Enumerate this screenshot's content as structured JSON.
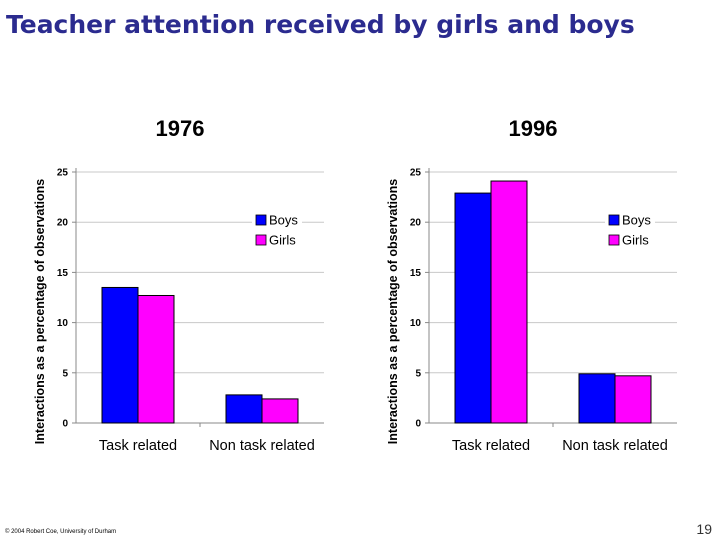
{
  "slide": {
    "title": "Teacher attention received by girls and boys",
    "footer": "© 2004 Robert Coe, University of Durham",
    "page_number": "19"
  },
  "colors": {
    "boys": "#0000ff",
    "girls": "#ff00ff"
  },
  "chart_data": [
    {
      "type": "bar",
      "title": "1976",
      "ylabel": "Interactions as a percentage of observations",
      "xlabel": "",
      "ylim": [
        0,
        25
      ],
      "yticks": [
        0,
        5,
        10,
        15,
        20,
        25
      ],
      "grid": true,
      "legend": "right",
      "categories": [
        "Task related",
        "Non task related"
      ],
      "series": [
        {
          "name": "Boys",
          "values": [
            13.5,
            2.8
          ]
        },
        {
          "name": "Girls",
          "values": [
            12.7,
            2.4
          ]
        }
      ]
    },
    {
      "type": "bar",
      "title": "1996",
      "ylabel": "Interactions as a percentage of observations",
      "xlabel": "",
      "ylim": [
        0,
        25
      ],
      "yticks": [
        0,
        5,
        10,
        15,
        20,
        25
      ],
      "grid": true,
      "legend": "right",
      "categories": [
        "Task related",
        "Non task related"
      ],
      "series": [
        {
          "name": "Boys",
          "values": [
            22.9,
            4.9
          ]
        },
        {
          "name": "Girls",
          "values": [
            24.1,
            4.7
          ]
        }
      ]
    }
  ]
}
